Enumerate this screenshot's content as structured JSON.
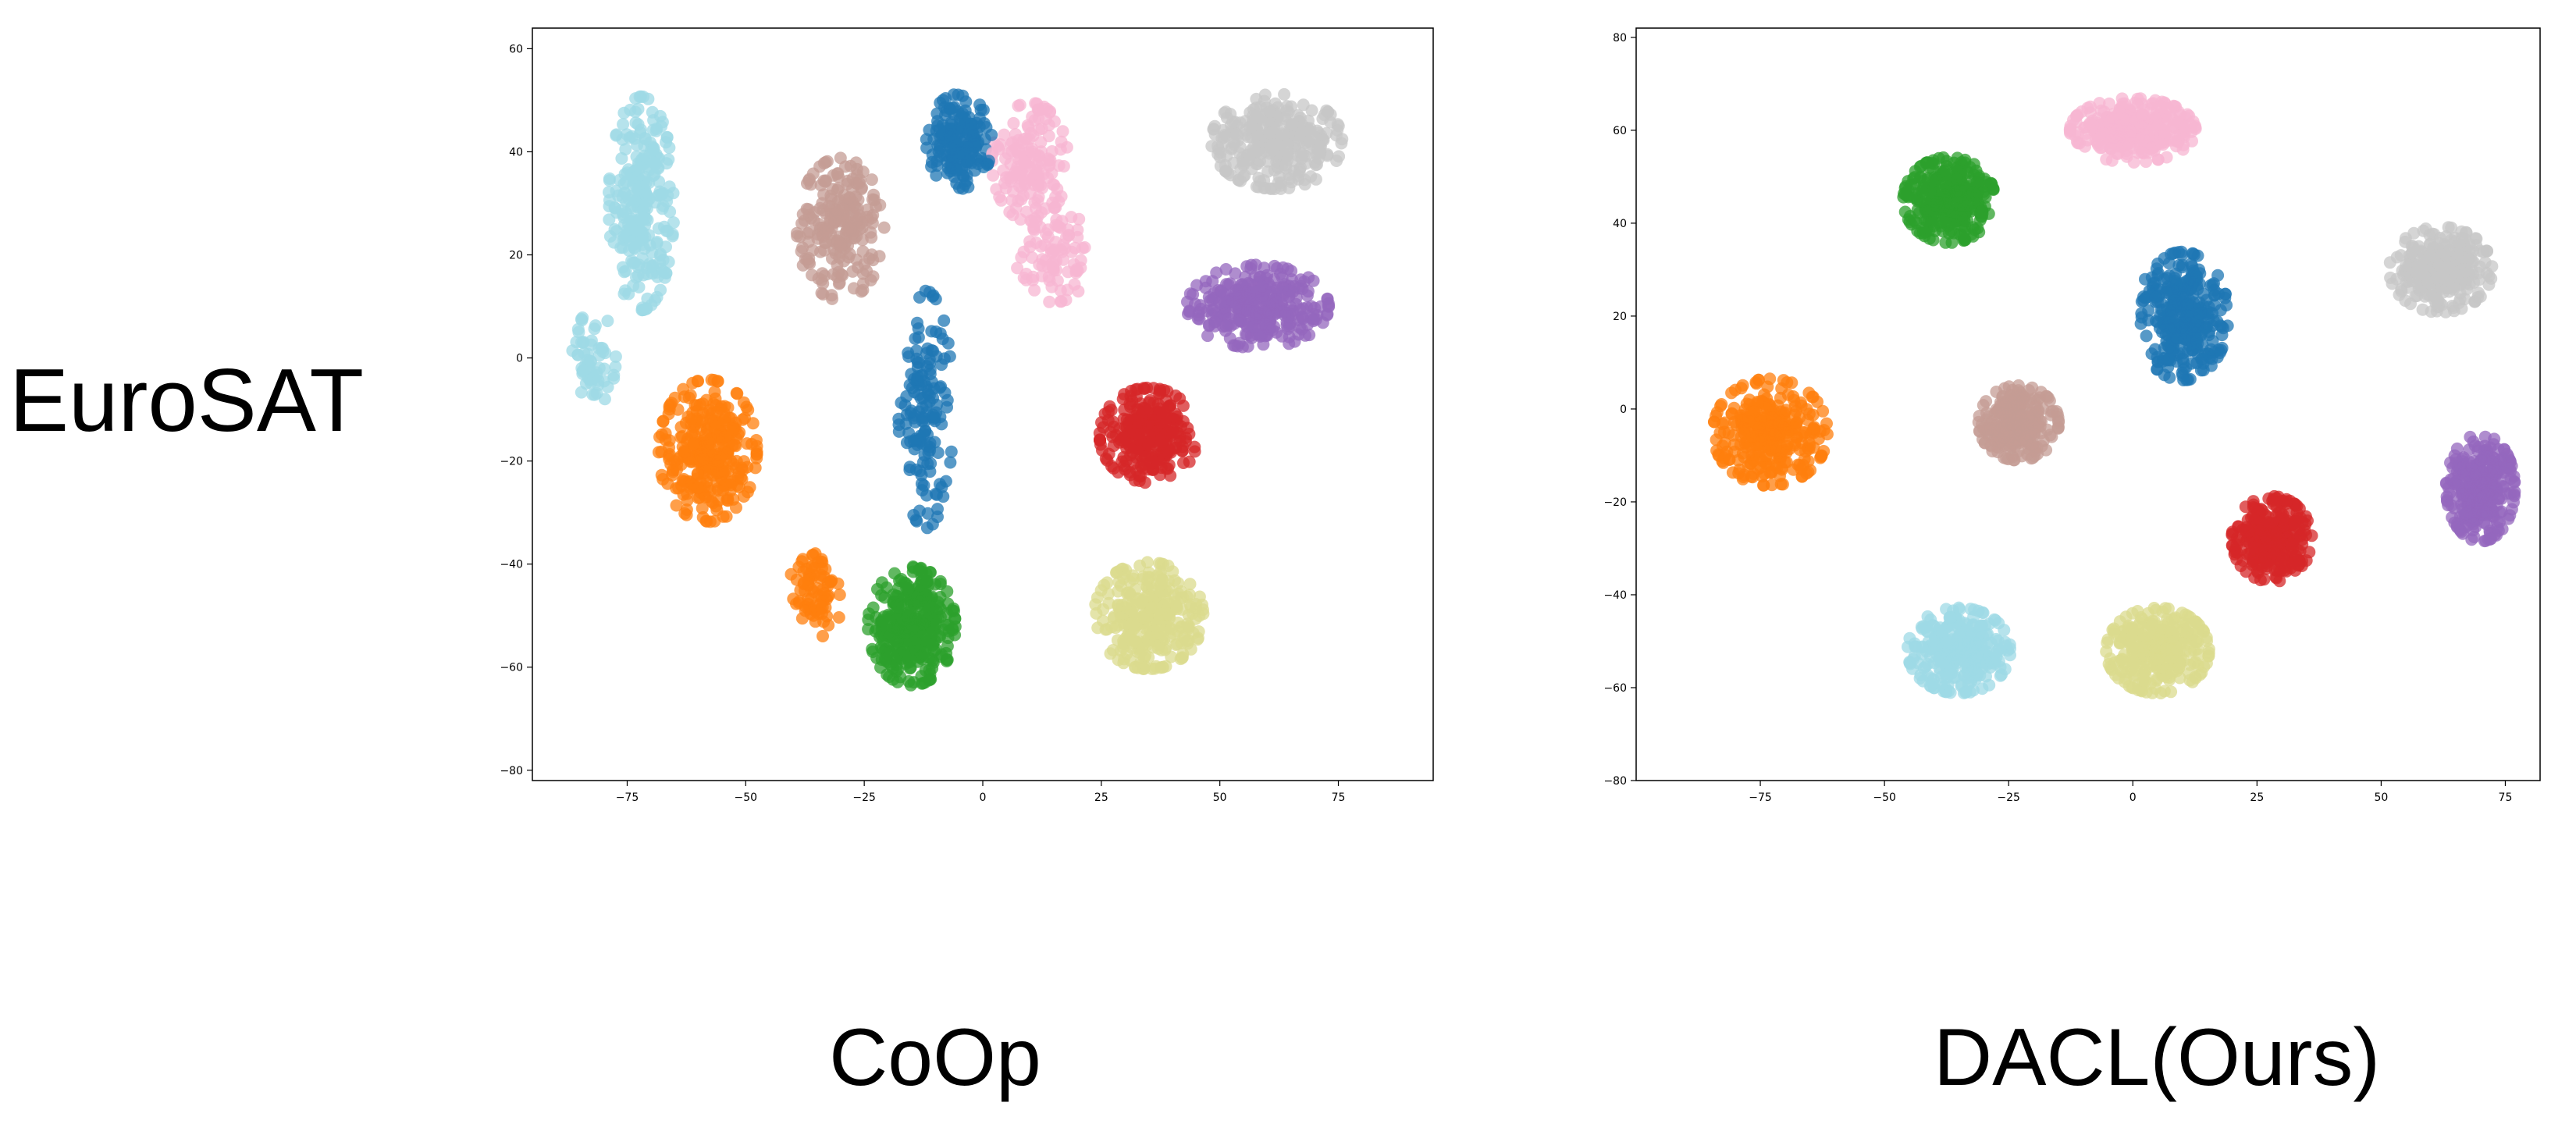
{
  "figure": {
    "row_label": "EuroSAT",
    "palette": {
      "0": "#ff7f0e",
      "1": "#2ca02c",
      "2": "#f7b6d2",
      "3": "#1f77b4",
      "4": "#c7c7c7",
      "5": "#c49c94",
      "6": "#d62728",
      "7": "#9467bd",
      "8": "#9edae5",
      "9": "#dbdb8d"
    }
  },
  "chart_data": [
    {
      "type": "scatter",
      "title": "CoOp",
      "xlabel": "",
      "ylabel": "",
      "xlim": [
        -95,
        95
      ],
      "ylim": [
        -82,
        64
      ],
      "xticks": [
        -75,
        -50,
        -25,
        0,
        25,
        50,
        75
      ],
      "yticks": [
        -80,
        -60,
        -40,
        -20,
        0,
        20,
        40,
        60
      ],
      "grid": false,
      "legend": "none",
      "clusters": [
        {
          "class": 8,
          "center": [
            -72,
            30
          ],
          "spread": [
            6,
            18
          ],
          "n": 260
        },
        {
          "class": 8,
          "center": [
            -82,
            0
          ],
          "spread": [
            4,
            8
          ],
          "n": 60
        },
        {
          "class": 0,
          "center": [
            -58,
            -18
          ],
          "spread": [
            9,
            12
          ],
          "n": 320
        },
        {
          "class": 0,
          "center": [
            -35,
            -45
          ],
          "spread": [
            5,
            8
          ],
          "n": 80
        },
        {
          "class": 5,
          "center": [
            -30,
            25
          ],
          "spread": [
            8,
            12
          ],
          "n": 220
        },
        {
          "class": 3,
          "center": [
            -5,
            42
          ],
          "spread": [
            6,
            8
          ],
          "n": 170
        },
        {
          "class": 3,
          "center": [
            -12,
            -10
          ],
          "spread": [
            5,
            20
          ],
          "n": 150
        },
        {
          "class": 2,
          "center": [
            10,
            38
          ],
          "spread": [
            7,
            10
          ],
          "n": 150
        },
        {
          "class": 2,
          "center": [
            15,
            20
          ],
          "spread": [
            7,
            8
          ],
          "n": 90
        },
        {
          "class": 4,
          "center": [
            62,
            42
          ],
          "spread": [
            12,
            8
          ],
          "n": 320
        },
        {
          "class": 7,
          "center": [
            58,
            10
          ],
          "spread": [
            13,
            7
          ],
          "n": 320
        },
        {
          "class": 6,
          "center": [
            35,
            -15
          ],
          "spread": [
            9,
            8
          ],
          "n": 280
        },
        {
          "class": 1,
          "center": [
            -15,
            -52
          ],
          "spread": [
            8,
            10
          ],
          "n": 340
        },
        {
          "class": 9,
          "center": [
            35,
            -50
          ],
          "spread": [
            10,
            9
          ],
          "n": 300
        }
      ]
    },
    {
      "type": "scatter",
      "title": "DACL(Ours)",
      "xlabel": "",
      "ylabel": "",
      "xlim": [
        -100,
        82
      ],
      "ylim": [
        -80,
        82
      ],
      "xticks": [
        -75,
        -50,
        -25,
        0,
        25,
        50,
        75
      ],
      "yticks": [
        -80,
        -60,
        -40,
        -20,
        0,
        20,
        40,
        60,
        80
      ],
      "grid": false,
      "legend": "none",
      "clusters": [
        {
          "class": 1,
          "center": [
            -37,
            45
          ],
          "spread": [
            8,
            8
          ],
          "n": 320
        },
        {
          "class": 2,
          "center": [
            0,
            60
          ],
          "spread": [
            11,
            6
          ],
          "n": 320
        },
        {
          "class": 3,
          "center": [
            10,
            20
          ],
          "spread": [
            8,
            12
          ],
          "n": 330
        },
        {
          "class": 4,
          "center": [
            62,
            30
          ],
          "spread": [
            9,
            8
          ],
          "n": 320
        },
        {
          "class": 0,
          "center": [
            -73,
            -5
          ],
          "spread": [
            10,
            10
          ],
          "n": 330
        },
        {
          "class": 5,
          "center": [
            -23,
            -3
          ],
          "spread": [
            7,
            7
          ],
          "n": 280
        },
        {
          "class": 6,
          "center": [
            28,
            -28
          ],
          "spread": [
            7,
            8
          ],
          "n": 300
        },
        {
          "class": 7,
          "center": [
            70,
            -17
          ],
          "spread": [
            6,
            10
          ],
          "n": 300
        },
        {
          "class": 8,
          "center": [
            -35,
            -52
          ],
          "spread": [
            9,
            8
          ],
          "n": 320
        },
        {
          "class": 9,
          "center": [
            5,
            -52
          ],
          "spread": [
            9,
            8
          ],
          "n": 320
        }
      ]
    }
  ]
}
